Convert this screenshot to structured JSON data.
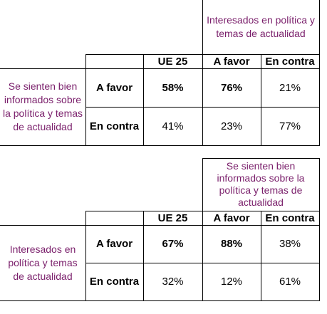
{
  "table1": {
    "header_group": "Interesados en política y temas de actualidad",
    "row_group": "Se sienten bien informados sobre la política y temas de actualidad",
    "columns": [
      "UE 25",
      "A favor",
      "En contra"
    ],
    "rows": [
      {
        "label": "A favor",
        "values": [
          "58%",
          "76%",
          "21%"
        ]
      },
      {
        "label": "En contra",
        "values": [
          "41%",
          "23%",
          "77%"
        ]
      }
    ]
  },
  "table2": {
    "header_group": "Se sienten bien informados sobre la política y temas de actualidad",
    "row_group": "Interesados en política y temas de actualidad",
    "columns": [
      "UE 25",
      "A favor",
      "En contra"
    ],
    "rows": [
      {
        "label": "A favor",
        "values": [
          "67%",
          "88%",
          "38%"
        ]
      },
      {
        "label": "En contra",
        "values": [
          "32%",
          "12%",
          "61%"
        ]
      }
    ]
  }
}
